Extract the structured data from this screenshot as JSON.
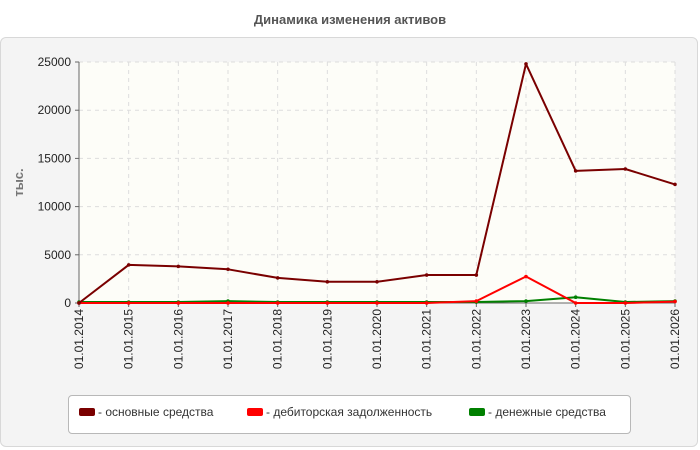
{
  "chart_data": {
    "type": "line",
    "title": "Динамика изменения активов",
    "ylabel": "тыс.",
    "xlabel": "",
    "categories": [
      "01.01.2014",
      "01.01.2015",
      "01.01.2016",
      "01.01.2017",
      "01.01.2018",
      "01.01.2019",
      "01.01.2020",
      "01.01.2021",
      "01.01.2022",
      "01.01.2023",
      "01.01.2024",
      "01.01.2025",
      "01.01.2026"
    ],
    "ylim": [
      0,
      25000
    ],
    "yticks": [
      0,
      5000,
      10000,
      15000,
      20000,
      25000
    ],
    "grid": true,
    "legend_position": "bottom",
    "series": [
      {
        "name": "- основные средства",
        "color": "#7a0000",
        "values": [
          0,
          3950,
          3800,
          3500,
          2600,
          2200,
          2200,
          2900,
          2900,
          24800,
          13700,
          13900,
          12300
        ]
      },
      {
        "name": "- дебиторская задолженность",
        "color": "#ff0000",
        "values": [
          0,
          0,
          0,
          0,
          0,
          0,
          0,
          0,
          200,
          2750,
          0,
          0,
          150
        ]
      },
      {
        "name": "- денежные средства",
        "color": "#008000",
        "values": [
          100,
          100,
          100,
          200,
          100,
          100,
          100,
          100,
          100,
          200,
          600,
          100,
          200
        ]
      }
    ]
  }
}
